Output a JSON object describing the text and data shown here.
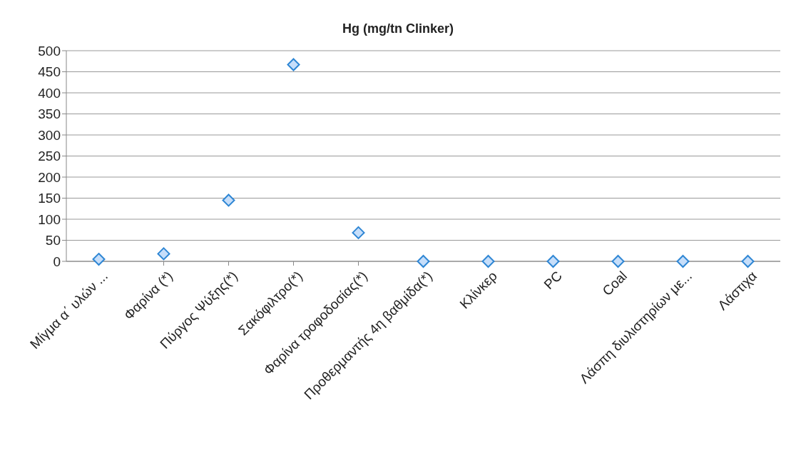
{
  "chart_data": {
    "type": "scatter",
    "title": "Hg (mg/tn Clinker)",
    "categories": [
      "Μίγμα α΄ υλών ...",
      "Φαρίνα (*)",
      "Πύργος Ψύξης(*)",
      "Σακόφιλτρο(*)",
      "Φαρίνα τροφοδοσίας(*)",
      "Προθερμαντής 4η βαθμίδα(*)",
      "Κλίνκερ",
      "PC",
      "Coal",
      "Λάσπη διυλιστηρίων με...",
      "Λάστιχα"
    ],
    "series": [
      {
        "color": "#2e86d4",
        "values": [
          5,
          18,
          145,
          467,
          68,
          0,
          0,
          0,
          0,
          0,
          0
        ]
      }
    ],
    "ylim": [
      0,
      500
    ],
    "yticks": [
      0,
      50,
      100,
      150,
      200,
      250,
      300,
      350,
      400,
      450,
      500
    ],
    "grid": "y",
    "marker": "diamond"
  }
}
